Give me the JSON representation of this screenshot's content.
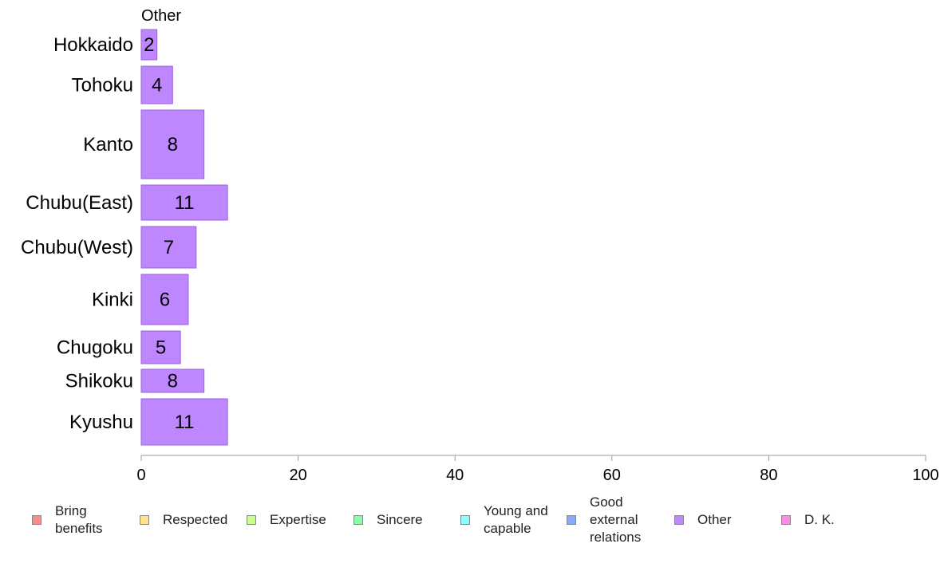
{
  "chart_data": {
    "type": "bar",
    "orientation": "horizontal",
    "panel_title": "Other",
    "categories": [
      "Hokkaido",
      "Tohoku",
      "Kanto",
      "Chubu(East)",
      "Chubu(West)",
      "Kinki",
      "Chugoku",
      "Shikoku",
      "Kyushu"
    ],
    "series": [
      {
        "name": "Other",
        "values": [
          2,
          4,
          8,
          11,
          7,
          6,
          5,
          8,
          11
        ],
        "color": "#bf87ff"
      }
    ],
    "xlim": [
      0,
      100
    ],
    "xticks": [
      0,
      20,
      40,
      60,
      80,
      100
    ],
    "grid": false,
    "legend_position": "bottom",
    "legend": [
      {
        "label": "Bring\nbenefits",
        "color": "#ff8a8a"
      },
      {
        "label": "Respected",
        "color": "#ffe38a"
      },
      {
        "label": "Expertise",
        "color": "#caff8a"
      },
      {
        "label": "Sincere",
        "color": "#8affa8"
      },
      {
        "label": "Young and\ncapable",
        "color": "#8affff"
      },
      {
        "label": "Good\nexternal\nrelations",
        "color": "#8aa8ff"
      },
      {
        "label": "Other",
        "color": "#bf87ff"
      },
      {
        "label": "D. K.",
        "color": "#ff8ae8"
      }
    ]
  }
}
